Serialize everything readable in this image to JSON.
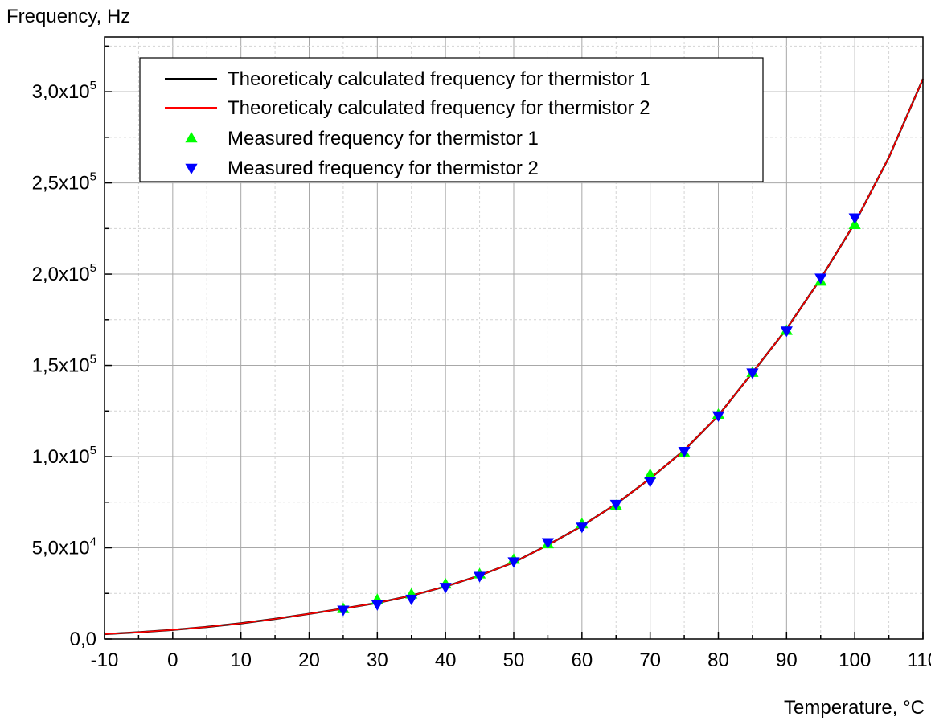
{
  "chart_data": {
    "type": "line",
    "ylabel": "Frequency, Hz",
    "xlabel": "Temperature, °C",
    "xlim": [
      -10,
      110
    ],
    "ylim": [
      0,
      330000
    ],
    "grid": true,
    "legend_position": "top-left",
    "x_ticks": [
      {
        "value": -10,
        "label": "-10"
      },
      {
        "value": 0,
        "label": "0"
      },
      {
        "value": 10,
        "label": "10"
      },
      {
        "value": 20,
        "label": "20"
      },
      {
        "value": 30,
        "label": "30"
      },
      {
        "value": 40,
        "label": "40"
      },
      {
        "value": 50,
        "label": "50"
      },
      {
        "value": 60,
        "label": "60"
      },
      {
        "value": 70,
        "label": "70"
      },
      {
        "value": 80,
        "label": "80"
      },
      {
        "value": 90,
        "label": "90"
      },
      {
        "value": 100,
        "label": "100"
      },
      {
        "value": 110,
        "label": "110"
      }
    ],
    "y_ticks": [
      {
        "value": 0,
        "mantissa": "0,0",
        "exponent": ""
      },
      {
        "value": 50000,
        "mantissa": "5,0x10",
        "exponent": "4"
      },
      {
        "value": 100000,
        "mantissa": "1,0x10",
        "exponent": "5"
      },
      {
        "value": 150000,
        "mantissa": "1,5x10",
        "exponent": "5"
      },
      {
        "value": 200000,
        "mantissa": "2,0x10",
        "exponent": "5"
      },
      {
        "value": 250000,
        "mantissa": "2,5x10",
        "exponent": "5"
      },
      {
        "value": 300000,
        "mantissa": "3,0x10",
        "exponent": "5"
      }
    ],
    "series": [
      {
        "name": "Theoreticaly calculated frequency for thermistor 1",
        "kind": "line",
        "color": "#000000",
        "x": [
          -10,
          -5,
          0,
          5,
          10,
          15,
          20,
          25,
          30,
          35,
          40,
          45,
          50,
          55,
          60,
          65,
          70,
          75,
          80,
          85,
          90,
          95,
          100,
          105,
          110
        ],
        "y": [
          2700,
          3700,
          5000,
          6600,
          8600,
          11000,
          13800,
          16700,
          19800,
          23800,
          28800,
          34800,
          42000,
          51500,
          62000,
          74000,
          88000,
          103500,
          122500,
          146000,
          170000,
          197500,
          228000,
          264000,
          307000
        ]
      },
      {
        "name": "Theoreticaly calculated frequency for thermistor 2",
        "kind": "line",
        "color": "#ff0000",
        "x": [
          -10,
          -5,
          0,
          5,
          10,
          15,
          20,
          25,
          30,
          35,
          40,
          45,
          50,
          55,
          60,
          65,
          70,
          75,
          80,
          85,
          90,
          95,
          100,
          105,
          110
        ],
        "y": [
          2700,
          3700,
          5000,
          6600,
          8600,
          11000,
          13800,
          16700,
          19800,
          23800,
          28800,
          34800,
          42000,
          51500,
          62000,
          74000,
          88000,
          103500,
          122500,
          146000,
          170000,
          197500,
          228000,
          264000,
          307000
        ]
      },
      {
        "name": "Measured frequency for thermistor 1",
        "kind": "marker",
        "marker": "triangle-up",
        "color": "#00ff00",
        "x": [
          25,
          30,
          35,
          40,
          45,
          50,
          55,
          60,
          65,
          70,
          75,
          80,
          85,
          90,
          95,
          100
        ],
        "y": [
          16500,
          21500,
          24500,
          30000,
          35500,
          43500,
          52000,
          63000,
          73000,
          90000,
          102000,
          123000,
          146000,
          169000,
          196000,
          227000
        ]
      },
      {
        "name": "Measured frequency for thermistor 2",
        "kind": "marker",
        "marker": "triangle-down",
        "color": "#0000ff",
        "x": [
          25,
          30,
          35,
          40,
          45,
          50,
          55,
          60,
          65,
          70,
          75,
          80,
          85,
          90,
          95,
          100
        ],
        "y": [
          16000,
          19000,
          22000,
          28500,
          34500,
          42500,
          53000,
          61500,
          74000,
          86500,
          103000,
          122500,
          146000,
          169000,
          198000,
          231000
        ]
      }
    ]
  }
}
